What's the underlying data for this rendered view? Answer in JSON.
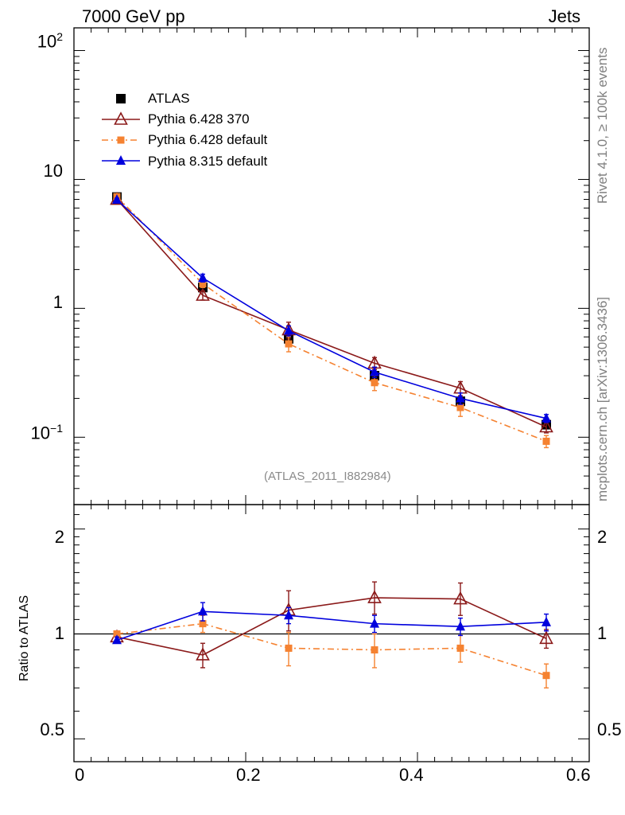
{
  "header": {
    "left": "7000 GeV pp",
    "right": "Jets"
  },
  "side_labels": {
    "rivet": "Rivet 4.1.0, ≥ 100k events",
    "mcplots": "mcplots.cern.ch [arXiv:1306.3436]"
  },
  "analysis_tag": "(ATLAS_2011_I882984)",
  "legend": [
    {
      "name": "ATLAS"
    },
    {
      "name": "Pythia 6.428 370"
    },
    {
      "name": "Pythia 6.428 default"
    },
    {
      "name": "Pythia 8.315 default"
    }
  ],
  "colors": {
    "atlas": "#000000",
    "p6_370": "#8b1a1a",
    "p6_default": "#f58231",
    "p8_default": "#0000dd"
  },
  "chart_data": [
    {
      "type": "line",
      "panel": "main",
      "yscale": "log",
      "xlim": [
        0,
        0.6
      ],
      "ylim": [
        0.03,
        150
      ],
      "x_ticks": [
        "0",
        "0.2",
        "0.4",
        "0.6"
      ],
      "y_ticks": [
        {
          "label": "10",
          "sup": "2"
        },
        {
          "label": "10",
          "sup": ""
        },
        {
          "label": "1",
          "sup": ""
        },
        {
          "label": "10",
          "sup": "−1"
        }
      ],
      "x": [
        0.05,
        0.15,
        0.25,
        0.35,
        0.45,
        0.55
      ],
      "series": [
        {
          "name": "ATLAS",
          "marker": "square",
          "values": [
            7.3,
            1.45,
            0.58,
            0.3,
            0.19,
            0.125
          ]
        },
        {
          "name": "Pythia 6.428 370",
          "marker": "open-triangle",
          "values": [
            7.0,
            1.26,
            0.68,
            0.375,
            0.24,
            0.12
          ],
          "err_up": [
            0.3,
            0.1,
            0.1,
            0.04,
            0.03,
            0.012
          ],
          "err_dn": [
            0.3,
            0.1,
            0.1,
            0.04,
            0.03,
            0.012
          ]
        },
        {
          "name": "Pythia 6.428 default",
          "marker": "square-small",
          "values": [
            7.35,
            1.55,
            0.53,
            0.265,
            0.17,
            0.093
          ],
          "err_up": [
            0.3,
            0.1,
            0.07,
            0.035,
            0.025,
            0.01
          ],
          "err_dn": [
            0.3,
            0.1,
            0.07,
            0.035,
            0.025,
            0.01
          ]
        },
        {
          "name": "Pythia 8.315 default",
          "marker": "triangle",
          "values": [
            6.95,
            1.72,
            0.67,
            0.32,
            0.2,
            0.14
          ],
          "err_up": [
            0.2,
            0.12,
            0.06,
            0.03,
            0.02,
            0.01
          ],
          "err_dn": [
            0.2,
            0.12,
            0.06,
            0.03,
            0.02,
            0.01
          ]
        }
      ]
    },
    {
      "type": "line",
      "panel": "ratio",
      "ylabel": "Ratio to ATLAS",
      "yscale": "log",
      "xlim": [
        0,
        0.6
      ],
      "ylim": [
        0.43,
        2.35
      ],
      "x_ticks": [
        "0",
        "0.2",
        "0.4",
        "0.6"
      ],
      "y_ticks": [
        "0.5",
        "1",
        "2"
      ],
      "reference": 1,
      "x": [
        0.05,
        0.15,
        0.25,
        0.35,
        0.45,
        0.55
      ],
      "series": [
        {
          "name": "Pythia 6.428 370",
          "values": [
            0.98,
            0.87,
            1.17,
            1.27,
            1.26,
            0.97
          ],
          "err_up": [
            0.03,
            0.07,
            0.16,
            0.14,
            0.14,
            0.06
          ],
          "err_dn": [
            0.03,
            0.07,
            0.15,
            0.13,
            0.13,
            0.06
          ]
        },
        {
          "name": "Pythia 6.428 default",
          "values": [
            1.0,
            1.07,
            0.91,
            0.9,
            0.91,
            0.76
          ],
          "err_up": [
            0.02,
            0.06,
            0.1,
            0.1,
            0.08,
            0.06
          ],
          "err_dn": [
            0.02,
            0.06,
            0.1,
            0.1,
            0.08,
            0.06
          ]
        },
        {
          "name": "Pythia 8.315 default",
          "values": [
            0.96,
            1.16,
            1.13,
            1.07,
            1.05,
            1.08
          ],
          "err_up": [
            0.02,
            0.07,
            0.06,
            0.06,
            0.06,
            0.06
          ],
          "err_dn": [
            0.02,
            0.07,
            0.06,
            0.06,
            0.06,
            0.06
          ]
        }
      ]
    }
  ]
}
